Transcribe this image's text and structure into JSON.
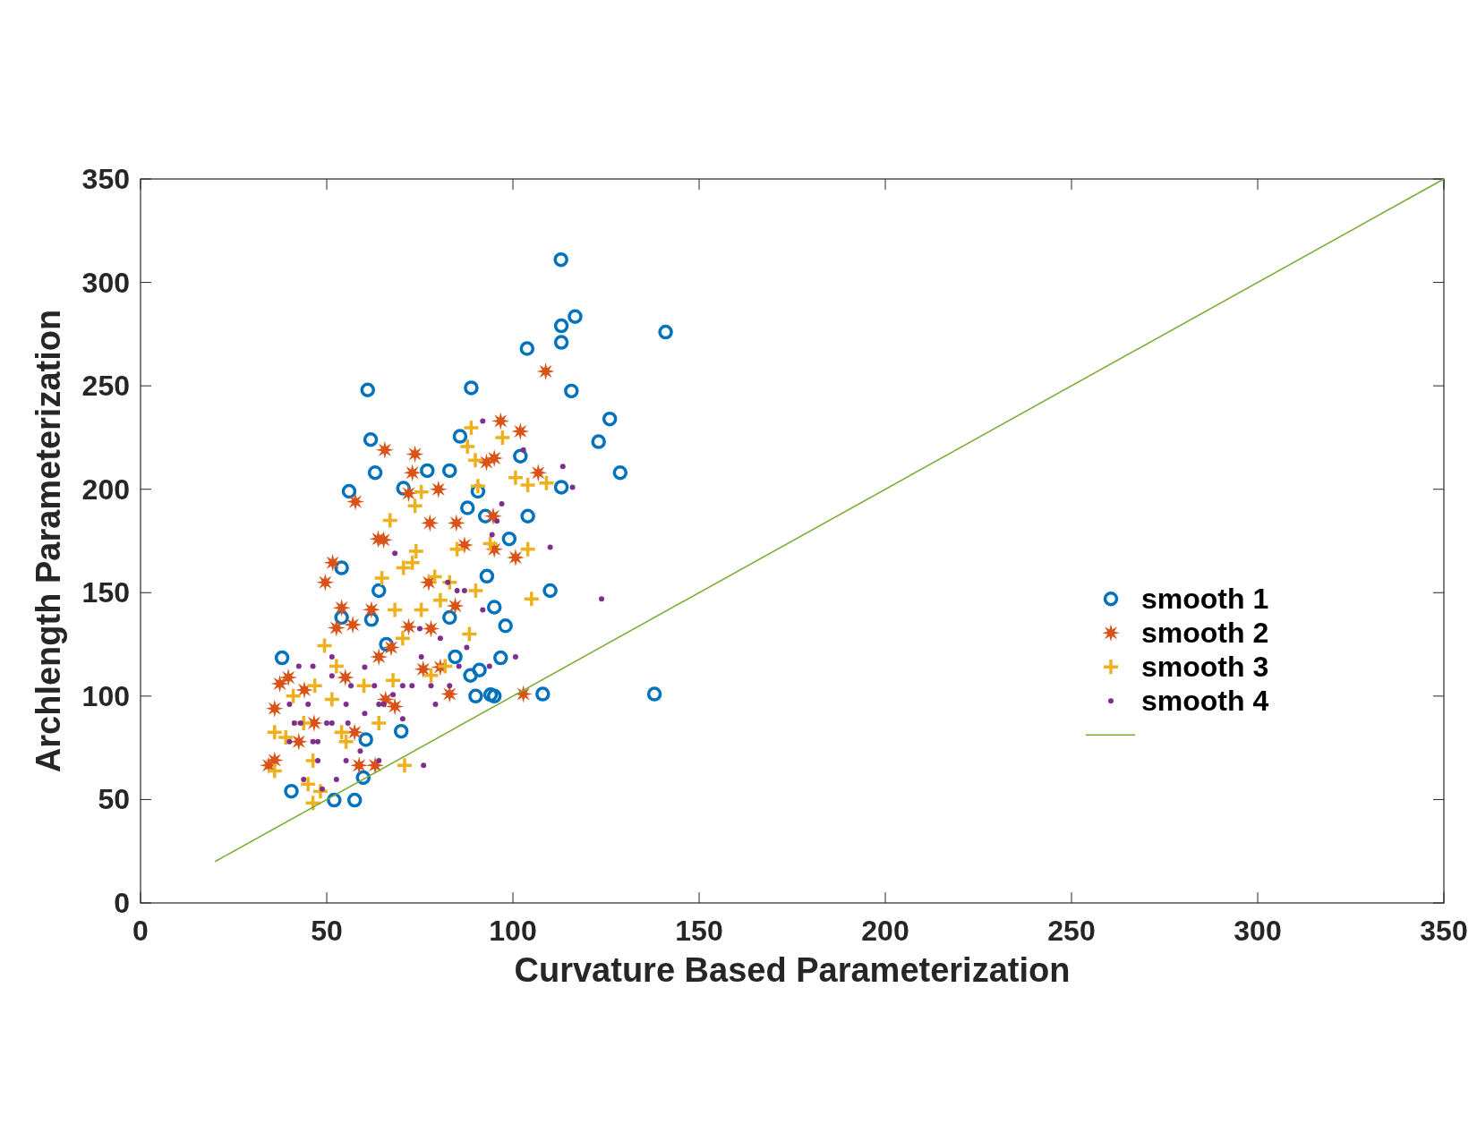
{
  "chart_data": {
    "type": "scatter",
    "xlabel": "Curvature Based Parameterization",
    "ylabel": "Archlength Parameterization",
    "xlim": [
      0,
      350
    ],
    "ylim": [
      0,
      350
    ],
    "xticks": [
      0,
      50,
      100,
      150,
      200,
      250,
      300,
      350
    ],
    "yticks": [
      0,
      50,
      100,
      150,
      200,
      250,
      300,
      350
    ],
    "grid": false,
    "legend": "right",
    "series": [
      {
        "name": "smooth 1",
        "color": "#0072bd",
        "marker": "circle",
        "x": [
          112.9,
          113,
          116.7,
          113,
          103.8,
          141,
          61,
          88.8,
          115.7,
          126,
          123,
          128.8,
          61.8,
          63,
          85.8,
          77,
          83,
          56,
          70.6,
          102,
          113,
          104,
          54,
          64,
          110,
          99,
          92.6,
          87.8,
          90.6,
          95,
          98,
          93,
          96.7,
          91,
          88.6,
          90,
          94,
          95,
          108,
          138,
          38,
          66,
          62,
          70,
          60.5,
          59.8,
          57.5,
          52,
          40.5,
          54,
          83,
          84.5
        ],
        "values": [
          311,
          279,
          283.5,
          271,
          268,
          276,
          248,
          249,
          247.5,
          234,
          223,
          208,
          224,
          208,
          225.6,
          209,
          209,
          199,
          200.5,
          216,
          201,
          187,
          162,
          151,
          151,
          176,
          187,
          191,
          199,
          143,
          134,
          158,
          118.5,
          112.6,
          110,
          100,
          100.7,
          100,
          101,
          101,
          118.5,
          125,
          137,
          83,
          79,
          60.6,
          49.7,
          49.7,
          54,
          138,
          138,
          119
        ]
      },
      {
        "name": "smooth 2",
        "color": "#d95319",
        "marker": "star",
        "x": [
          108.8,
          96.7,
          102,
          65.6,
          73.7,
          57.7,
          106.8,
          95,
          92.9,
          73,
          72,
          80,
          63.8,
          65.3,
          51.6,
          49.6,
          77.7,
          84.8,
          94.7,
          87,
          100.7,
          95,
          54,
          62,
          84.5,
          77.4,
          72,
          57,
          52.6,
          36,
          37.4,
          36,
          34.4,
          63,
          58.7,
          102.8,
          83,
          68.3,
          65.8,
          75.9,
          80.5,
          55,
          64,
          46.6,
          42.5,
          78,
          67.3,
          57.5,
          39.7,
          44
        ],
        "values": [
          257,
          233,
          228,
          219,
          217,
          194,
          208,
          215,
          213,
          208,
          198,
          200,
          176,
          175.5,
          164.5,
          155,
          183.7,
          183.7,
          187,
          173,
          167,
          171,
          142.7,
          141.8,
          143.6,
          155,
          133.5,
          134.5,
          133,
          94,
          106,
          69,
          66.5,
          66.5,
          66.5,
          101,
          101,
          95,
          98.4,
          113,
          114,
          109,
          119,
          87,
          78,
          132.6,
          123.5,
          82.5,
          109,
          103
        ]
      },
      {
        "name": "smooth 3",
        "color": "#edb120",
        "marker": "cross",
        "x": [
          88.8,
          97.2,
          87.8,
          89.9,
          90.6,
          100.7,
          104,
          109,
          67,
          75.4,
          73.7,
          93.9,
          104,
          85,
          74,
          73,
          70.6,
          64.8,
          79,
          105,
          83,
          90,
          88.3,
          68.3,
          70.4,
          49.4,
          70.9,
          36,
          46.3,
          46.3,
          48.3,
          39,
          36,
          52.6,
          60,
          41,
          43.8,
          54,
          67.8,
          78,
          81.8,
          75.4,
          80.5,
          46.8,
          51.4,
          64,
          55.2,
          45
        ],
        "values": [
          229.7,
          225,
          220.6,
          214,
          201.5,
          205.6,
          202,
          203,
          185,
          198.7,
          192,
          173.7,
          171,
          171,
          170,
          164.5,
          162,
          157,
          157.7,
          147,
          155,
          151,
          130,
          141.7,
          128,
          124.4,
          66.5,
          63.8,
          68.8,
          48.3,
          54,
          80,
          82.5,
          114.4,
          105,
          100,
          87,
          82.5,
          107.6,
          110,
          114.4,
          141.7,
          146.3,
          105,
          98.4,
          87,
          78,
          57.4
        ]
      },
      {
        "name": "smooth 4",
        "color": "#7e2f8e",
        "x": [
          123.8,
          113.4,
          116,
          110,
          102.8,
          97,
          95.7,
          94.4,
          76,
          68.3,
          82.5,
          91.9,
          85,
          87.6,
          75,
          65.3,
          70.4,
          60.2,
          50,
          42.5,
          45,
          40,
          47.6,
          52.6,
          43.8,
          41.3,
          55.2,
          62.8,
          70.4,
          78,
          83,
          85.5,
          51.4,
          46.3,
          75.4,
          80.5,
          48.8,
          47.6,
          59,
          64,
          55.2,
          40,
          43,
          46.3,
          51.4,
          55.7,
          60.2,
          64,
          67.8,
          72.9,
          79.2,
          51.4,
          56.5,
          93.7,
          100.7,
          91.9,
          87
        ],
        "values": [
          147,
          211,
          201,
          172,
          219,
          193,
          184.6,
          178,
          66.5,
          169,
          155,
          141.7,
          151,
          123.5,
          132.6,
          96,
          89,
          114,
          87,
          114.4,
          96,
          78,
          68.8,
          59.7,
          59.7,
          87,
          96,
          105,
          105,
          105,
          105,
          114.4,
          119,
          114.4,
          119,
          128,
          55,
          78,
          73.4,
          68.8,
          68.8,
          96,
          87,
          78,
          87,
          87,
          91.6,
          96,
          100.7,
          105,
          96,
          109.8,
          105,
          114.4,
          119,
          233,
          151
        ]
      },
      {
        "type": "line",
        "color": "#77ac30",
        "marker": "none",
        "line_style": "solid",
        "x": [
          20,
          350
        ],
        "values": [
          20,
          350
        ]
      }
    ]
  }
}
